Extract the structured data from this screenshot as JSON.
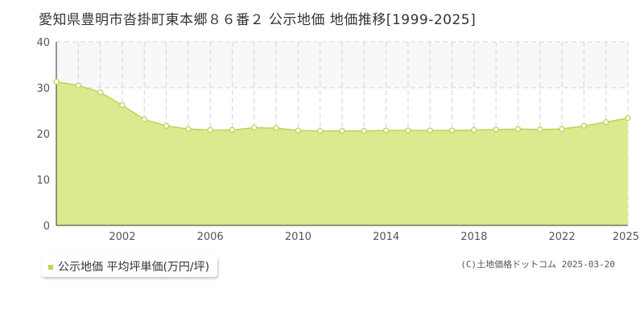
{
  "title": "愛知県豊明市沓掛町東本郷８６番２ 公示地価 地価推移[1999-2025]",
  "legend": {
    "label": "公示地価 平均坪単価(万円/坪)"
  },
  "credit": "(C)土地価格ドットコム 2025-03-20",
  "colors": {
    "fill": "#dbea8e",
    "line": "#b9d55a",
    "band": "#f8f8fa",
    "marker_fill": "#ffffff",
    "legend_swatch": "#b9d55a"
  },
  "chart_data": {
    "type": "area",
    "ylim": [
      0,
      40
    ],
    "yticks": [
      0,
      10,
      20,
      30,
      40
    ],
    "xlim": [
      1999,
      2025
    ],
    "xticks": [
      2002,
      2006,
      2010,
      2014,
      2018,
      2022,
      2025
    ],
    "band": [
      30,
      40
    ],
    "series": [
      {
        "name": "公示地価 平均坪単価(万円/坪)",
        "x": [
          1999,
          2000,
          2001,
          2002,
          2003,
          2004,
          2005,
          2006,
          2007,
          2008,
          2009,
          2010,
          2011,
          2012,
          2013,
          2014,
          2015,
          2016,
          2017,
          2018,
          2019,
          2020,
          2021,
          2022,
          2023,
          2024,
          2025
        ],
        "y": [
          31.3,
          30.5,
          29.0,
          26.2,
          23.1,
          21.7,
          21.0,
          20.8,
          20.8,
          21.3,
          21.2,
          20.7,
          20.6,
          20.6,
          20.6,
          20.7,
          20.7,
          20.7,
          20.7,
          20.8,
          20.9,
          21.0,
          20.9,
          21.0,
          21.7,
          22.5,
          23.4
        ]
      }
    ]
  }
}
